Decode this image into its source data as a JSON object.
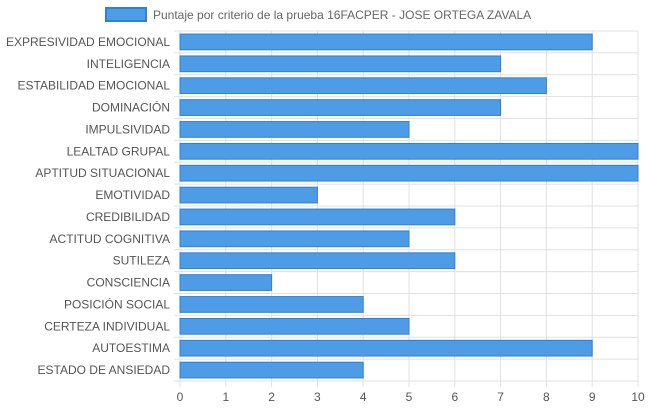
{
  "chart_data": {
    "type": "bar",
    "orientation": "horizontal",
    "title": "",
    "xlabel": "",
    "ylabel": "",
    "xlim": [
      0,
      10
    ],
    "x_ticks": [
      0,
      1,
      2,
      3,
      4,
      5,
      6,
      7,
      8,
      9,
      10
    ],
    "grid": true,
    "legend_position": "top",
    "categories": [
      "EXPRESIVIDAD EMOCIONAL",
      "INTELIGENCIA",
      "ESTABILIDAD EMOCIONAL",
      "DOMINACIÓN",
      "IMPULSIVIDAD",
      "LEALTAD GRUPAL",
      "APTITUD SITUACIONAL",
      "EMOTIVIDAD",
      "CREDIBILIDAD",
      "ACTITUD COGNITIVA",
      "SUTILEZA",
      "CONSCIENCIA",
      "POSICIÓN SOCIAL",
      "CERTEZA INDIVIDUAL",
      "AUTOESTIMA",
      "ESTADO DE ANSIEDAD"
    ],
    "series": [
      {
        "name": "Puntaje por criterio de la prueba 16FACPER - JOSE ORTEGA ZAVALA",
        "values": [
          9,
          7,
          8,
          7,
          5,
          10,
          10,
          3,
          6,
          5,
          6,
          2,
          4,
          5,
          9,
          4
        ],
        "color": "#4e9be6",
        "border_color": "#2f80d8"
      }
    ],
    "colors": {
      "grid": "#e0e0e0",
      "axis_text": "#555555",
      "legend_text": "#666666"
    }
  }
}
